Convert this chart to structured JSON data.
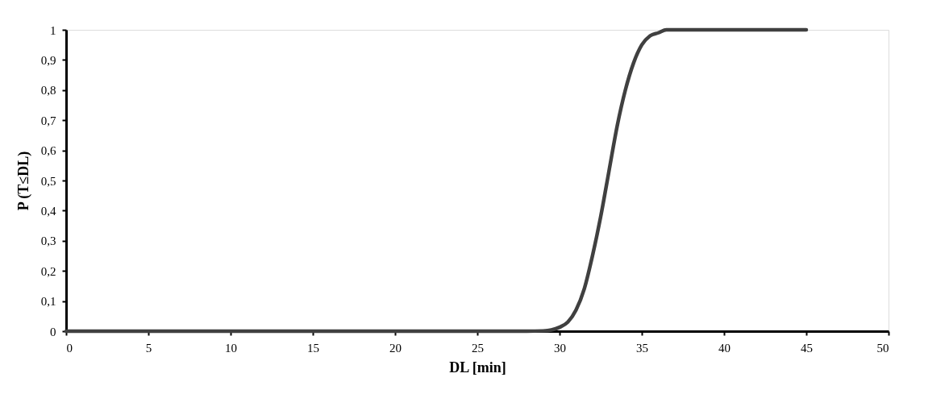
{
  "chart_data": {
    "type": "line",
    "xlabel": "DL [min]",
    "ylabel": "P (T≤DL)",
    "x": [
      0,
      28,
      29,
      29.5,
      30,
      30.5,
      31,
      31.5,
      32,
      32.5,
      33,
      33.5,
      34,
      34.5,
      35,
      35.5,
      36,
      36.5,
      37,
      38,
      45
    ],
    "series": [
      {
        "color": "#404040",
        "values": [
          0,
          0,
          0.001,
          0.004,
          0.013,
          0.03,
          0.07,
          0.14,
          0.25,
          0.38,
          0.53,
          0.68,
          0.8,
          0.89,
          0.95,
          0.98,
          0.99,
          1,
          1,
          1,
          1
        ]
      }
    ],
    "xlim": [
      0,
      50
    ],
    "xticks": [
      0,
      5,
      10,
      15,
      20,
      25,
      30,
      35,
      40,
      45,
      50
    ],
    "ylim": [
      0,
      1
    ],
    "yticks": [
      0,
      {
        "value": 0.1,
        "label": "0,1"
      },
      {
        "value": 0.2,
        "label": "0,2"
      },
      {
        "value": 0.3,
        "label": "0,3"
      },
      {
        "value": 0.4,
        "label": "0,4"
      },
      {
        "value": 0.5,
        "label": "0,5"
      },
      {
        "value": 0.6,
        "label": "0,6"
      },
      {
        "value": 0.7,
        "label": "0,7"
      },
      {
        "value": 0.8,
        "label": "0,8"
      },
      {
        "value": 0.9,
        "label": "0,9"
      },
      1
    ],
    "grid": false,
    "marker": "none",
    "line_style": "solid"
  }
}
